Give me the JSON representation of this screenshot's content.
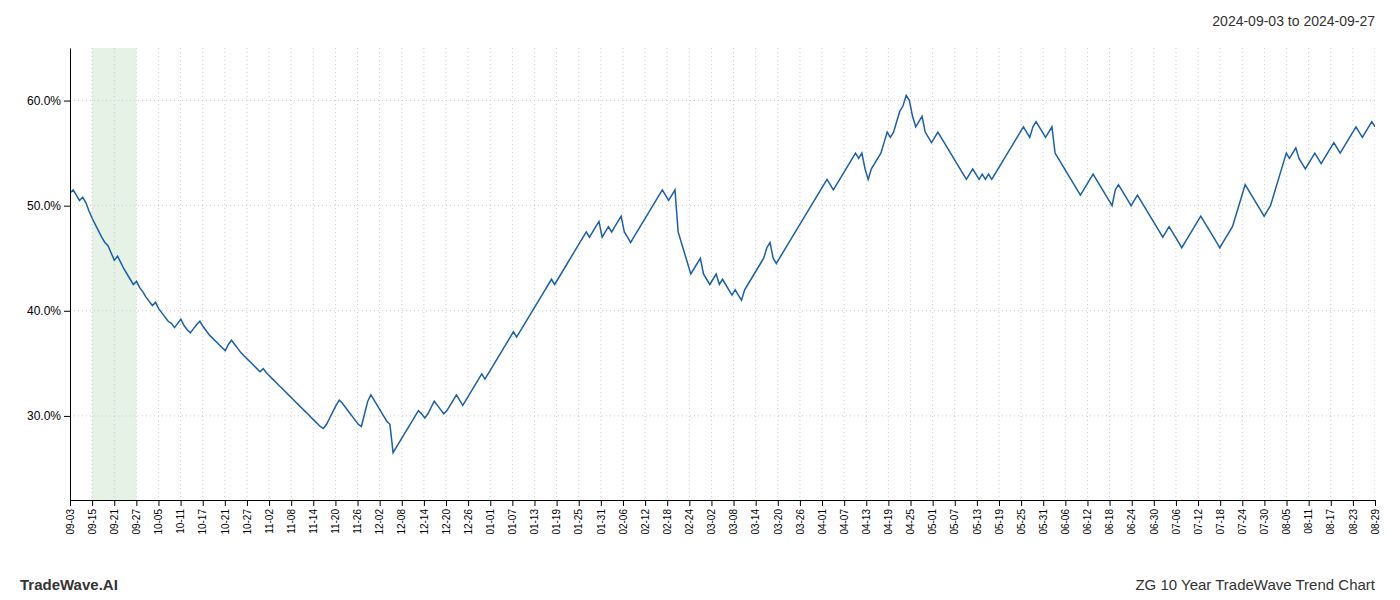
{
  "chart_data": {
    "type": "line",
    "title": "2024-09-03 to 2024-09-27",
    "annotations": [
      "TradeWave.AI",
      "ZG 10 Year TradeWave Trend Chart"
    ],
    "color": "#1a5fa8",
    "grid": true,
    "xlim": [
      0,
      412
    ],
    "xticks": [
      {
        "value": 0,
        "label": "09-03"
      },
      {
        "value": 6.98,
        "label": "09-15"
      },
      {
        "value": 13.97,
        "label": "09-21"
      },
      {
        "value": 20.95,
        "label": "09-27"
      },
      {
        "value": 27.93,
        "label": "10-05"
      },
      {
        "value": 34.92,
        "label": "10-11"
      },
      {
        "value": 41.9,
        "label": "10-17"
      },
      {
        "value": 48.88,
        "label": "10-21"
      },
      {
        "value": 55.86,
        "label": "10-27"
      },
      {
        "value": 62.85,
        "label": "11-02"
      },
      {
        "value": 69.83,
        "label": "11-08"
      },
      {
        "value": 76.81,
        "label": "11-14"
      },
      {
        "value": 83.8,
        "label": "11-20"
      },
      {
        "value": 90.78,
        "label": "11-26"
      },
      {
        "value": 97.76,
        "label": "12-02"
      },
      {
        "value": 104.75,
        "label": "12-08"
      },
      {
        "value": 111.73,
        "label": "12-14"
      },
      {
        "value": 118.71,
        "label": "12-20"
      },
      {
        "value": 125.69,
        "label": "12-26"
      },
      {
        "value": 132.68,
        "label": "01-01"
      },
      {
        "value": 139.66,
        "label": "01-07"
      },
      {
        "value": 146.64,
        "label": "01-13"
      },
      {
        "value": 153.63,
        "label": "01-19"
      },
      {
        "value": 160.61,
        "label": "01-25"
      },
      {
        "value": 167.59,
        "label": "01-31"
      },
      {
        "value": 174.58,
        "label": "02-06"
      },
      {
        "value": 181.56,
        "label": "02-12"
      },
      {
        "value": 188.54,
        "label": "02-18"
      },
      {
        "value": 195.53,
        "label": "02-24"
      },
      {
        "value": 202.51,
        "label": "03-02"
      },
      {
        "value": 209.49,
        "label": "03-08"
      },
      {
        "value": 216.47,
        "label": "03-14"
      },
      {
        "value": 223.46,
        "label": "03-20"
      },
      {
        "value": 230.44,
        "label": "03-26"
      },
      {
        "value": 237.42,
        "label": "04-01"
      },
      {
        "value": 244.41,
        "label": "04-07"
      },
      {
        "value": 251.39,
        "label": "04-13"
      },
      {
        "value": 258.37,
        "label": "04-19"
      },
      {
        "value": 265.36,
        "label": "04-25"
      },
      {
        "value": 272.34,
        "label": "05-01"
      },
      {
        "value": 279.32,
        "label": "05-07"
      },
      {
        "value": 286.31,
        "label": "05-13"
      },
      {
        "value": 293.29,
        "label": "05-19"
      },
      {
        "value": 300.27,
        "label": "05-25"
      },
      {
        "value": 307.25,
        "label": "05-31"
      },
      {
        "value": 314.24,
        "label": "06-06"
      },
      {
        "value": 321.22,
        "label": "06-12"
      },
      {
        "value": 328.2,
        "label": "06-18"
      },
      {
        "value": 335.19,
        "label": "06-24"
      },
      {
        "value": 342.17,
        "label": "06-30"
      },
      {
        "value": 349.15,
        "label": "07-06"
      },
      {
        "value": 356.14,
        "label": "07-12"
      },
      {
        "value": 363.12,
        "label": "07-18"
      },
      {
        "value": 370.1,
        "label": "07-24"
      },
      {
        "value": 377.08,
        "label": "07-30"
      },
      {
        "value": 384.07,
        "label": "08-05"
      },
      {
        "value": 391.05,
        "label": "08-11"
      },
      {
        "value": 398.03,
        "label": "08-17"
      },
      {
        "value": 405.02,
        "label": "08-23"
      },
      {
        "value": 412,
        "label": "08-29"
      }
    ],
    "ylim": [
      22,
      65
    ],
    "yticks": [
      {
        "value": 30.0,
        "label": "30.0%"
      },
      {
        "value": 40.0,
        "label": "40.0%"
      },
      {
        "value": 50.0,
        "label": "50.0%"
      },
      {
        "value": 60.0,
        "label": "60.0%"
      }
    ],
    "span": {
      "x": [
        6.98,
        20.95
      ],
      "color": "#d6ead6"
    },
    "values": [
      51.2,
      51.5,
      51.0,
      50.5,
      50.8,
      50.3,
      49.5,
      48.8,
      48.2,
      47.6,
      47.0,
      46.5,
      46.2,
      45.5,
      44.8,
      45.2,
      44.6,
      44.0,
      43.5,
      43.0,
      42.5,
      42.8,
      42.2,
      41.8,
      41.3,
      40.9,
      40.5,
      40.8,
      40.2,
      39.8,
      39.4,
      39.0,
      38.8,
      38.4,
      38.8,
      39.2,
      38.6,
      38.2,
      37.9,
      38.3,
      38.7,
      39.0,
      38.5,
      38.1,
      37.7,
      37.4,
      37.1,
      36.8,
      36.5,
      36.2,
      36.8,
      37.2,
      36.8,
      36.4,
      36.0,
      35.7,
      35.4,
      35.1,
      34.8,
      34.5,
      34.2,
      34.5,
      34.1,
      33.8,
      33.5,
      33.2,
      32.9,
      32.6,
      32.3,
      32.0,
      31.7,
      31.4,
      31.1,
      30.8,
      30.5,
      30.2,
      29.9,
      29.6,
      29.3,
      29.0,
      28.8,
      29.2,
      29.8,
      30.4,
      31.0,
      31.5,
      31.2,
      30.8,
      30.4,
      30.0,
      29.6,
      29.2,
      29.0,
      30.2,
      31.4,
      32.0,
      31.5,
      31.0,
      30.5,
      30.0,
      29.5,
      29.2,
      26.5,
      27.0,
      27.5,
      28.0,
      28.5,
      29.0,
      29.5,
      30.0,
      30.5,
      30.2,
      29.8,
      30.2,
      30.8,
      31.4,
      31.0,
      30.6,
      30.2,
      30.5,
      31.0,
      31.5,
      32.0,
      31.5,
      31.0,
      31.5,
      32.0,
      32.5,
      33.0,
      33.5,
      34.0,
      33.5,
      34.0,
      34.5,
      35.0,
      35.5,
      36.0,
      36.5,
      37.0,
      37.5,
      38.0,
      37.5,
      38.0,
      38.5,
      39.0,
      39.5,
      40.0,
      40.5,
      41.0,
      41.5,
      42.0,
      42.5,
      43.0,
      42.5,
      43.0,
      43.5,
      44.0,
      44.5,
      45.0,
      45.5,
      46.0,
      46.5,
      47.0,
      47.5,
      47.0,
      47.5,
      48.0,
      48.5,
      47.0,
      47.5,
      48.0,
      47.5,
      48.0,
      48.5,
      49.0,
      47.5,
      47.0,
      46.5,
      47.0,
      47.5,
      48.0,
      48.5,
      49.0,
      49.5,
      50.0,
      50.5,
      51.0,
      51.5,
      51.0,
      50.5,
      51.0,
      51.5,
      47.5,
      46.5,
      45.5,
      44.5,
      43.5,
      44.0,
      44.5,
      45.0,
      43.5,
      43.0,
      42.5,
      43.0,
      43.5,
      42.5,
      43.0,
      42.5,
      42.0,
      41.5,
      42.0,
      41.5,
      41.0,
      42.0,
      42.5,
      43.0,
      43.5,
      44.0,
      44.5,
      45.0,
      46.0,
      46.5,
      45.0,
      44.5,
      45.0,
      45.5,
      46.0,
      46.5,
      47.0,
      47.5,
      48.0,
      48.5,
      49.0,
      49.5,
      50.0,
      50.5,
      51.0,
      51.5,
      52.0,
      52.5,
      52.0,
      51.5,
      52.0,
      52.5,
      53.0,
      53.5,
      54.0,
      54.5,
      55.0,
      54.5,
      55.0,
      53.5,
      52.5,
      53.5,
      54.0,
      54.5,
      55.0,
      56.0,
      57.0,
      56.5,
      57.0,
      58.0,
      59.0,
      59.5,
      60.5,
      60.0,
      58.5,
      57.5,
      58.0,
      58.5,
      57.0,
      56.5,
      56.0,
      56.5,
      57.0,
      56.5,
      56.0,
      55.5,
      55.0,
      54.5,
      54.0,
      53.5,
      53.0,
      52.5,
      53.0,
      53.5,
      53.0,
      52.5,
      53.0,
      52.5,
      53.0,
      52.5,
      53.0,
      53.5,
      54.0,
      54.5,
      55.0,
      55.5,
      56.0,
      56.5,
      57.0,
      57.5,
      57.0,
      56.5,
      57.5,
      58.0,
      57.5,
      57.0,
      56.5,
      57.0,
      57.5,
      55.0,
      54.5,
      54.0,
      53.5,
      53.0,
      52.5,
      52.0,
      51.5,
      51.0,
      51.5,
      52.0,
      52.5,
      53.0,
      52.5,
      52.0,
      51.5,
      51.0,
      50.5,
      50.0,
      51.5,
      52.0,
      51.5,
      51.0,
      50.5,
      50.0,
      50.5,
      51.0,
      50.5,
      50.0,
      49.5,
      49.0,
      48.5,
      48.0,
      47.5,
      47.0,
      47.5,
      48.0,
      47.5,
      47.0,
      46.5,
      46.0,
      46.5,
      47.0,
      47.5,
      48.0,
      48.5,
      49.0,
      48.5,
      48.0,
      47.5,
      47.0,
      46.5,
      46.0,
      46.5,
      47.0,
      47.5,
      48.0,
      49.0,
      50.0,
      51.0,
      52.0,
      51.5,
      51.0,
      50.5,
      50.0,
      49.5,
      49.0,
      49.5,
      50.0,
      51.0,
      52.0,
      53.0,
      54.0,
      55.0,
      54.5,
      55.0,
      55.5,
      54.5,
      54.0,
      53.5,
      54.0,
      54.5,
      55.0,
      54.5,
      54.0,
      54.5,
      55.0,
      55.5,
      56.0,
      55.5,
      55.0,
      55.5,
      56.0,
      56.5,
      57.0,
      57.5,
      57.0,
      56.5,
      57.0,
      57.5,
      58.0,
      57.5
    ]
  }
}
